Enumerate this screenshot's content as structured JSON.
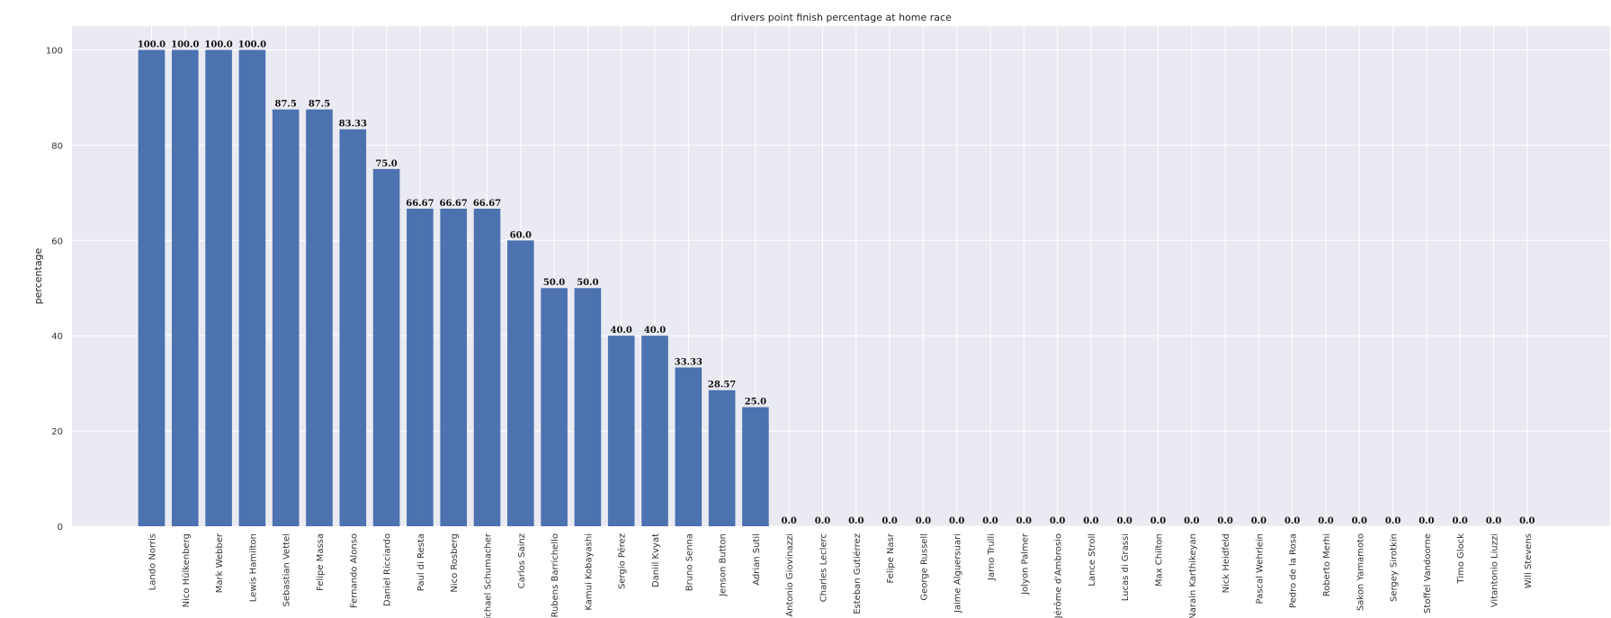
{
  "chart_data": {
    "type": "bar",
    "title": "drivers point finish percentage at home race",
    "xlabel": "",
    "ylabel": "percentage",
    "ylim": [
      0,
      105
    ],
    "yticks": [
      0,
      20,
      40,
      60,
      80,
      100
    ],
    "grid": true,
    "bar_color": "#4c72b0",
    "background_color": "#eaeaf2",
    "categories": [
      "Lando Norris",
      "Nico Hülkenberg",
      "Mark Webber",
      "Lewis Hamilton",
      "Sebastian Vettel",
      "Felipe Massa",
      "Fernando Alonso",
      "Daniel Ricciardo",
      "Paul di Resta",
      "Nico Rosberg",
      "Michael Schumacher",
      "Carlos Sainz",
      "Rubens Barrichello",
      "Kamui Kobayashi",
      "Sergio Pérez",
      "Daniil Kvyat",
      "Bruno Senna",
      "Jenson Button",
      "Adrian Sutil",
      "Antonio Giovinazzi",
      "Charles Leclerc",
      "Esteban Gutiérrez",
      "Felipe Nasr",
      "George Russell",
      "Jaime Alguersuari",
      "Jarno Trulli",
      "Jolyon Palmer",
      "Jérôme d'Ambrosio",
      "Lance Stroll",
      "Lucas di Grassi",
      "Max Chilton",
      "Narain Karthikeyan",
      "Nick Heidfeld",
      "Pascal Wehrlein",
      "Pedro de la Rosa",
      "Roberto Merhi",
      "Sakon Yamamoto",
      "Sergey Sirotkin",
      "Stoffel Vandoorne",
      "Timo Glock",
      "Vitantonio Liuzzi",
      "Will Stevens"
    ],
    "values": [
      100,
      100,
      100,
      100,
      87.5,
      87.5,
      83.33,
      75,
      66.67,
      66.67,
      66.67,
      60,
      50,
      50,
      40,
      40,
      33.33,
      28.57,
      25,
      0,
      0,
      0,
      0,
      0,
      0,
      0,
      0,
      0,
      0,
      0,
      0,
      0,
      0,
      0,
      0,
      0,
      0,
      0,
      0,
      0,
      0,
      0
    ],
    "data_labels": [
      "100.0",
      "100.0",
      "100.0",
      "100.0",
      "87.5",
      "87.5",
      "83.33",
      "75.0",
      "66.67",
      "66.67",
      "66.67",
      "60.0",
      "50.0",
      "50.0",
      "40.0",
      "40.0",
      "33.33",
      "28.57",
      "25.0",
      "0.0",
      "0.0",
      "0.0",
      "0.0",
      "0.0",
      "0.0",
      "0.0",
      "0.0",
      "0.0",
      "0.0",
      "0.0",
      "0.0",
      "0.0",
      "0.0",
      "0.0",
      "0.0",
      "0.0",
      "0.0",
      "0.0",
      "0.0",
      "0.0",
      "0.0",
      "0.0"
    ]
  }
}
